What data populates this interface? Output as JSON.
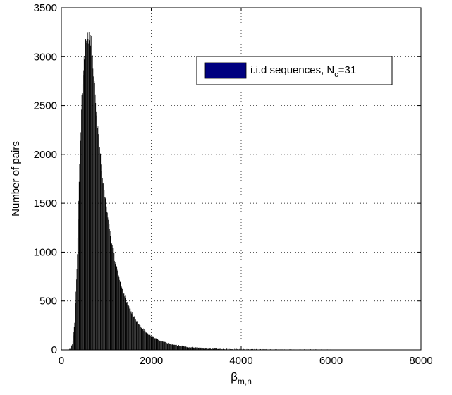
{
  "chart_data": {
    "type": "bar",
    "xlabel": "β",
    "xlabel_subscript": "m,n",
    "ylabel": "Number of pairs",
    "xlim": [
      0,
      8000
    ],
    "ylim": [
      0,
      3500
    ],
    "xticks": [
      "0",
      "2000",
      "4000",
      "6000",
      "8000"
    ],
    "yticks": [
      "0",
      "500",
      "1000",
      "1500",
      "2000",
      "2500",
      "3000",
      "3500"
    ],
    "grid": true,
    "legend_placement": "top-right",
    "series": [
      {
        "name": "i.i.d sequences, N_c=31",
        "legend_main": "i.i.d sequences, N",
        "legend_sub": "c",
        "legend_tail": "=31",
        "bar_color": "#000000",
        "legend_color": "#00007f",
        "x": [
          150,
          200,
          250,
          300,
          350,
          400,
          450,
          500,
          550,
          600,
          625,
          650,
          675,
          700,
          750,
          800,
          850,
          900,
          950,
          1000,
          1100,
          1200,
          1300,
          1400,
          1500,
          1600,
          1700,
          1800,
          1900,
          2000,
          2200,
          2400,
          2600,
          2800,
          3000,
          3200,
          3500,
          3800,
          4000,
          4300,
          4600,
          5000,
          5500,
          6000,
          7000,
          7600
        ],
        "values": [
          0,
          10,
          70,
          300,
          900,
          1800,
          2500,
          2950,
          3150,
          3230,
          3240,
          3200,
          3100,
          2950,
          2650,
          2350,
          2100,
          1850,
          1650,
          1450,
          1150,
          900,
          720,
          560,
          440,
          350,
          280,
          220,
          175,
          140,
          95,
          65,
          45,
          30,
          22,
          15,
          9,
          6,
          4,
          3,
          2,
          1,
          1,
          0,
          0,
          0
        ]
      }
    ]
  }
}
